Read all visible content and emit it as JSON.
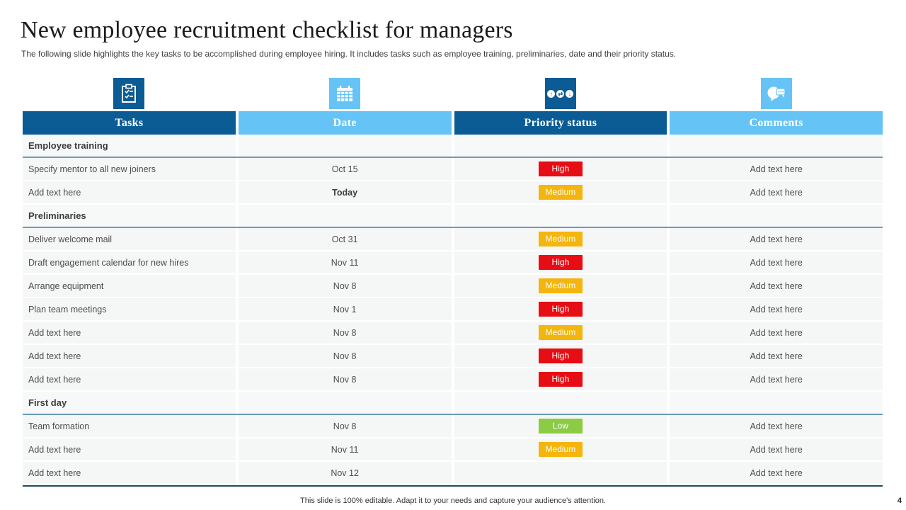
{
  "slide": {
    "title": "New employee recruitment checklist for managers",
    "subtitle": "The following slide highlights the key tasks to be accomplished during employee hiring. It includes tasks such as employee training, preliminaries, date and their priority status.",
    "footer": "This slide is 100% editable.  Adapt it to your needs and capture your audience's attention.",
    "page_number": "4"
  },
  "colors": {
    "dark_blue": "#0b5b95",
    "light_blue": "#66c3f5",
    "priority_high": "#e60d14",
    "priority_medium": "#f3b50e",
    "priority_low": "#8ccb44",
    "row_background": "#f5f6f6",
    "section_line": "#6b9ab8"
  },
  "table": {
    "columns": [
      {
        "label": "Tasks",
        "icon": "clipboard-checklist-icon",
        "theme": "dark"
      },
      {
        "label": "Date",
        "icon": "calendar-icon",
        "theme": "light"
      },
      {
        "label": "Priority status",
        "icon": "priority-arrows-icon",
        "theme": "dark"
      },
      {
        "label": "Comments",
        "icon": "speech-bubbles-icon",
        "theme": "light"
      }
    ],
    "rows": [
      {
        "type": "section",
        "task": "Employee training"
      },
      {
        "type": "item",
        "task": "Specify mentor to all new joiners",
        "date": "Oct 15",
        "priority": "High",
        "comment": "Add text here"
      },
      {
        "type": "item",
        "task": "Add text here",
        "date": "Today",
        "date_bold": true,
        "priority": "Medium",
        "comment": "Add text here"
      },
      {
        "type": "section",
        "task": "Preliminaries"
      },
      {
        "type": "item",
        "task": "Deliver welcome mail",
        "date": "Oct 31",
        "priority": "Medium",
        "comment": "Add text here"
      },
      {
        "type": "item",
        "task": "Draft engagement calendar for new hires",
        "date": "Nov 11",
        "priority": "High",
        "comment": "Add text here"
      },
      {
        "type": "item",
        "task": "Arrange equipment",
        "date": "Nov 8",
        "priority": "Medium",
        "comment": "Add text here"
      },
      {
        "type": "item",
        "task": "Plan team meetings",
        "date": "Nov 1",
        "priority": "High",
        "comment": "Add text here"
      },
      {
        "type": "item",
        "task": "Add text here",
        "date": "Nov 8",
        "priority": "Medium",
        "comment": "Add text here"
      },
      {
        "type": "item",
        "task": "Add text here",
        "date": "Nov 8",
        "priority": "High",
        "comment": "Add text here"
      },
      {
        "type": "item",
        "task": "Add text here",
        "date": "Nov 8",
        "priority": "High",
        "comment": "Add text here"
      },
      {
        "type": "section",
        "task": "First day"
      },
      {
        "type": "item",
        "task": "Team formation",
        "date": "Nov 8",
        "priority": "Low",
        "comment": "Add text here"
      },
      {
        "type": "item",
        "task": "Add text here",
        "date": "Nov 11",
        "priority": "Medium",
        "comment": "Add text here"
      },
      {
        "type": "item",
        "task": "Add text here",
        "date": "Nov 12",
        "priority": "",
        "comment": "Add text here"
      }
    ]
  }
}
